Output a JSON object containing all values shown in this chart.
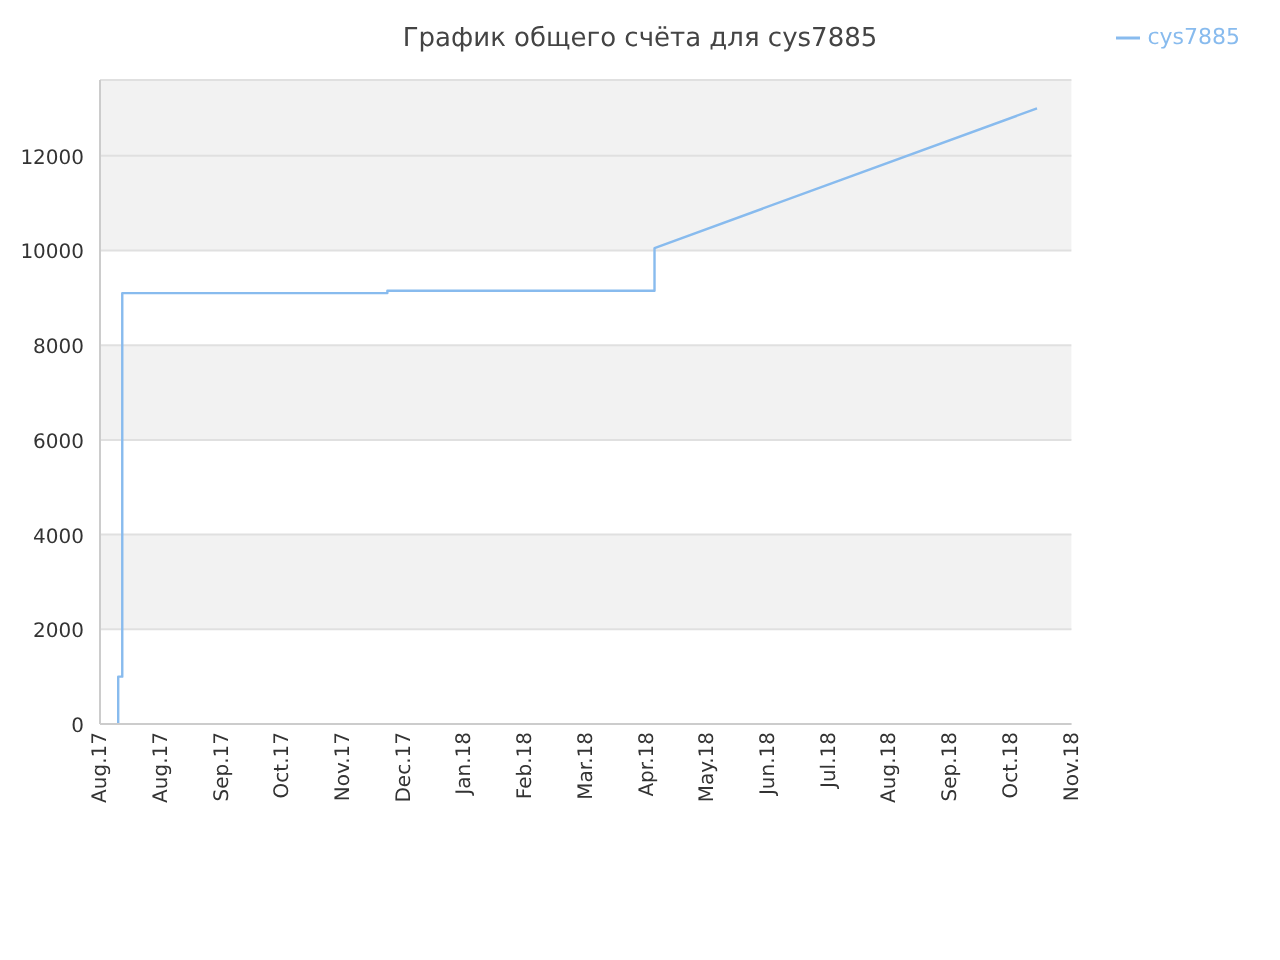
{
  "chart_data": {
    "type": "line",
    "title": "График общего счёта для cys7885",
    "legend": "top right",
    "grid": "y",
    "marker": "none",
    "line_style": "solid",
    "xlim": [
      "2017-08-01",
      "2018-11-24"
    ],
    "xticks": [
      {
        "value": "2017-08-01",
        "label": "Aug.17"
      },
      {
        "value": "2017-08-31",
        "label": "Aug.17"
      },
      {
        "value": "2017-09-30",
        "label": "Sep.17"
      },
      {
        "value": "2017-10-30",
        "label": "Oct.17"
      },
      {
        "value": "2017-11-29",
        "label": "Nov.17"
      },
      {
        "value": "2017-12-29",
        "label": "Dec.17"
      },
      {
        "value": "2018-01-28",
        "label": "Jan.18"
      },
      {
        "value": "2018-02-27",
        "label": "Feb.18"
      },
      {
        "value": "2018-03-29",
        "label": "Mar.18"
      },
      {
        "value": "2018-04-28",
        "label": "Apr.18"
      },
      {
        "value": "2018-05-28",
        "label": "May.18"
      },
      {
        "value": "2018-06-27",
        "label": "Jun.18"
      },
      {
        "value": "2018-07-27",
        "label": "Jul.18"
      },
      {
        "value": "2018-08-26",
        "label": "Aug.18"
      },
      {
        "value": "2018-09-25",
        "label": "Sep.18"
      },
      {
        "value": "2018-10-25",
        "label": "Oct.18"
      },
      {
        "value": "2018-11-24",
        "label": "Nov.18"
      }
    ],
    "ylim": [
      0,
      13600
    ],
    "yticks": [
      0,
      2000,
      4000,
      6000,
      8000,
      10000,
      12000
    ],
    "series": [
      {
        "name": "cys7885",
        "color": "#88bbee",
        "x": [
          "2017-08-10",
          "2017-08-10",
          "2017-08-12",
          "2017-08-12",
          "2017-12-21",
          "2017-12-21",
          "2018-05-02",
          "2018-05-02",
          "2018-11-07"
        ],
        "values": [
          0,
          1000,
          1000,
          9100,
          9100,
          9150,
          9150,
          10050,
          13000
        ]
      }
    ]
  }
}
